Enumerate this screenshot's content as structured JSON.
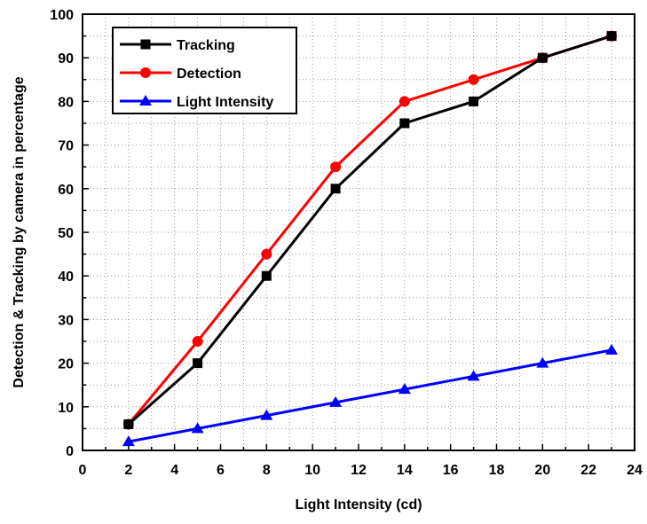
{
  "chart_data": {
    "type": "line",
    "xlabel": "Light Intensity (cd)",
    "ylabel": "Detection & Tracking by camera in percentage",
    "xlim": [
      0,
      24
    ],
    "ylim": [
      0,
      100
    ],
    "xticks": [
      0,
      2,
      4,
      6,
      8,
      10,
      12,
      14,
      16,
      18,
      20,
      22,
      24
    ],
    "yticks": [
      0,
      10,
      20,
      30,
      40,
      50,
      60,
      70,
      80,
      90,
      100
    ],
    "grid": true,
    "legend": "top-left",
    "x": [
      2,
      5,
      8,
      11,
      14,
      17,
      20,
      23
    ],
    "series": [
      {
        "name": "Tracking",
        "color": "#000000",
        "marker": "square",
        "values": [
          6,
          20,
          40,
          60,
          75,
          80,
          90,
          95
        ]
      },
      {
        "name": "Detection",
        "color": "#ff0000",
        "marker": "circle",
        "values": [
          6,
          25,
          45,
          65,
          80,
          85,
          90,
          95
        ]
      },
      {
        "name": "Light Intensity",
        "color": "#0000ff",
        "marker": "triangle",
        "values": [
          2,
          5,
          8,
          11,
          14,
          17,
          20,
          23
        ]
      }
    ]
  }
}
